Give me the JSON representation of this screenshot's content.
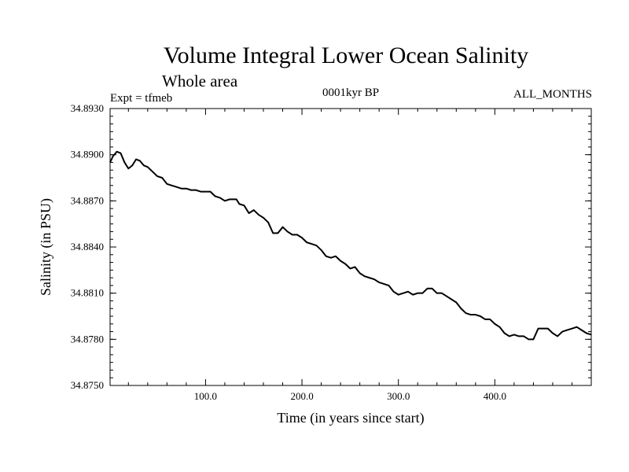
{
  "chart_data": {
    "type": "line",
    "title": "Volume Integral Lower Ocean Salinity",
    "subtitle": "Whole area",
    "experiment_label": "Expt = tfmeb",
    "period_label": "0001kyr BP",
    "months_label": "ALL_MONTHS",
    "xlabel": "Time (in years since start)",
    "ylabel": "Salinity (in PSU)",
    "xlim": [
      1,
      500
    ],
    "ylim": [
      34.875,
      34.893
    ],
    "xticks": [
      100,
      200,
      300,
      400
    ],
    "xtick_labels": [
      "100.0",
      "200.0",
      "300.0",
      "400.0"
    ],
    "yticks": [
      34.875,
      34.878,
      34.881,
      34.884,
      34.887,
      34.89,
      34.893
    ],
    "ytick_labels": [
      "34.8750",
      "34.8780",
      "34.8810",
      "34.8840",
      "34.8870",
      "34.8900",
      "34.8930"
    ],
    "grid": false,
    "legend": "none",
    "line_color": "#000000",
    "series": [
      {
        "x": [
          1,
          4,
          8,
          12,
          16,
          20,
          24,
          28,
          32,
          36,
          40,
          45,
          50,
          55,
          60,
          65,
          70,
          75,
          80,
          85,
          90,
          95,
          100,
          105,
          110,
          115,
          120,
          125,
          128,
          132,
          135,
          140,
          145,
          150,
          155,
          160,
          165,
          170,
          175,
          180,
          185,
          190,
          195,
          200,
          205,
          210,
          215,
          220,
          225,
          230,
          235,
          240,
          245,
          250,
          255,
          260,
          265,
          270,
          275,
          280,
          285,
          290,
          295,
          300,
          305,
          310,
          315,
          320,
          325,
          330,
          335,
          340,
          345,
          350,
          355,
          360,
          365,
          370,
          375,
          380,
          385,
          390,
          395,
          400,
          405,
          410,
          415,
          420,
          425,
          430,
          435,
          440,
          445,
          450,
          455,
          460,
          465,
          470,
          475,
          480,
          485,
          490,
          495,
          500
        ],
        "y": [
          34.8895,
          34.8899,
          34.8902,
          34.8901,
          34.8895,
          34.8891,
          34.8893,
          34.8897,
          34.8896,
          34.8893,
          34.8892,
          34.8889,
          34.8886,
          34.8885,
          34.8881,
          34.888,
          34.8879,
          34.8878,
          34.8878,
          34.8877,
          34.8877,
          34.8876,
          34.8876,
          34.8876,
          34.8873,
          34.8872,
          34.887,
          34.8871,
          34.8871,
          34.8871,
          34.8868,
          34.8867,
          34.8862,
          34.8864,
          34.8861,
          34.8859,
          34.8856,
          34.8849,
          34.8849,
          34.8853,
          34.885,
          34.8848,
          34.8848,
          34.8846,
          34.8843,
          34.8842,
          34.8841,
          34.8838,
          34.8834,
          34.8833,
          34.8834,
          34.8831,
          34.8829,
          34.8826,
          34.8827,
          34.8823,
          34.8821,
          34.882,
          34.8819,
          34.8817,
          34.8816,
          34.8815,
          34.8811,
          34.8809,
          34.881,
          34.8811,
          34.8809,
          34.881,
          34.881,
          34.8813,
          34.8813,
          34.881,
          34.881,
          34.8808,
          34.8806,
          34.8804,
          34.88,
          34.8797,
          34.8796,
          34.8796,
          34.8795,
          34.8793,
          34.8793,
          34.879,
          34.8788,
          34.8784,
          34.8782,
          34.8783,
          34.8782,
          34.8782,
          34.878,
          34.878,
          34.8787,
          34.8787,
          34.8787,
          34.8784,
          34.8782,
          34.8785,
          34.8786,
          34.8787,
          34.8788,
          34.8786,
          34.8784,
          34.8783
        ]
      }
    ]
  }
}
